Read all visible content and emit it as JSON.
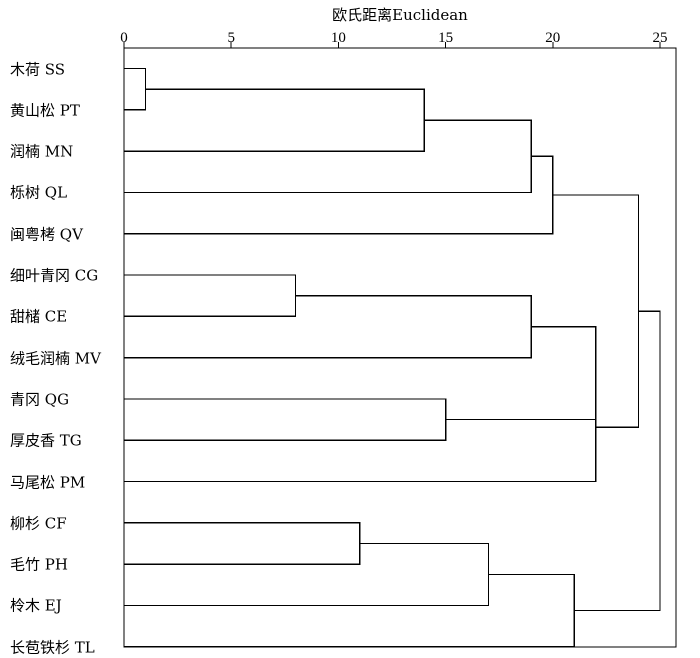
{
  "chart_data": {
    "type": "dendrogram",
    "axis_title": "欧氏距离Euclidean",
    "xlim": [
      0,
      26
    ],
    "ticks": [
      0,
      5,
      10,
      15,
      20,
      25
    ],
    "leaves": [
      "木荷 SS",
      "黄山松 PT",
      "润楠 MN",
      "栎树 QL",
      "闽粤栲 QV",
      "细叶青冈 CG",
      "甜槠 CE",
      "绒毛润楠 MV",
      "青冈 QG",
      "厚皮香 TG",
      "马尾松 PM",
      "柳杉 CF",
      "毛竹 PH",
      "柃木 EJ",
      "长苞铁杉 TL"
    ],
    "merges": [
      {
        "a": "L0",
        "b": "L1",
        "height": 1
      },
      {
        "a": "M0",
        "b": "L2",
        "height": 14
      },
      {
        "a": "M1",
        "b": "L3",
        "height": 19
      },
      {
        "a": "M2",
        "b": "L4",
        "height": 20
      },
      {
        "a": "L5",
        "b": "L6",
        "height": 8
      },
      {
        "a": "M4",
        "b": "L7",
        "height": 19
      },
      {
        "a": "L8",
        "b": "L9",
        "height": 15
      },
      {
        "a": "M5",
        "b": "M6",
        "height": 22
      },
      {
        "a": "M7",
        "b": "L10",
        "height": 22
      },
      {
        "a": "M3",
        "b": "M8",
        "height": 24
      },
      {
        "a": "L11",
        "b": "L12",
        "height": 11
      },
      {
        "a": "M10",
        "b": "L13",
        "height": 17
      },
      {
        "a": "M11",
        "b": "L14",
        "height": 21
      },
      {
        "a": "M9",
        "b": "M12",
        "height": 25
      }
    ]
  }
}
